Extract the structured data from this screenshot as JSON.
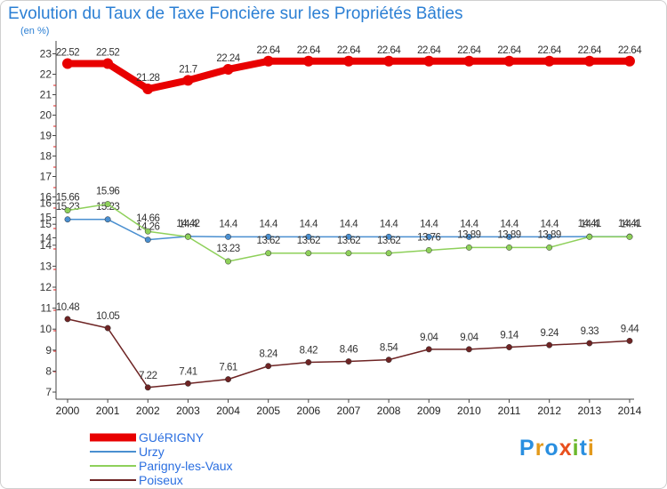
{
  "chart_data": {
    "type": "line",
    "title": "Evolution du Taux de Taxe Foncière sur les Propriétés Bâties",
    "unit_label": "(en %)",
    "categories": [
      "2000",
      "2001",
      "2002",
      "2003",
      "2004",
      "2005",
      "2006",
      "2007",
      "2008",
      "2009",
      "2010",
      "2011",
      "2012",
      "2013",
      "2014"
    ],
    "y_ticks_upper": [
      14,
      15,
      16,
      17,
      18,
      19,
      20,
      21,
      22,
      23
    ],
    "y_ticks_lower": [
      7,
      8,
      9,
      10,
      11,
      12,
      13,
      14,
      15,
      16
    ],
    "grid": false,
    "legend_position": "bottom-left",
    "series": [
      {
        "name": "GUéRIGNY",
        "color": "#e80000",
        "values": [
          22.52,
          22.52,
          21.28,
          21.7,
          22.24,
          22.64,
          22.64,
          22.64,
          22.64,
          22.64,
          22.64,
          22.64,
          22.64,
          22.64,
          22.64
        ],
        "labels": [
          "22.52",
          "22.52",
          "21.28",
          "21.7",
          "22.24",
          "22.64",
          "22.64",
          "22.64",
          "22.64",
          "22.64",
          "22.64",
          "22.64",
          "22.64",
          "22.64",
          "22.64"
        ]
      },
      {
        "name": "Urzy",
        "color": "#4a8fd0",
        "values": [
          15.23,
          15.23,
          14.26,
          14.42,
          14.4,
          14.4,
          14.4,
          14.4,
          14.4,
          14.4,
          14.4,
          14.4,
          14.4,
          14.41,
          14.41
        ],
        "labels": [
          "15.23",
          "15.23",
          "14.26",
          "14.42",
          "14.4",
          "14.4",
          "14.4",
          "14.4",
          "14.4",
          "14.4",
          "14.4",
          "14.4",
          "14.4",
          "14.41",
          "14.41"
        ]
      },
      {
        "name": "Parigny-les-Vaux",
        "color": "#8ed05a",
        "values": [
          15.66,
          15.96,
          14.66,
          14.4,
          13.23,
          13.62,
          13.62,
          13.62,
          13.62,
          13.76,
          13.89,
          13.89,
          13.89,
          14.4,
          14.4
        ],
        "labels": [
          "15.66",
          "15.96",
          "14.66",
          "14.4",
          "13.23",
          "13.62",
          "13.62",
          "13.62",
          "13.62",
          "13.76",
          "13.89",
          "13.89",
          "13.89",
          "14.4",
          "14.4"
        ]
      },
      {
        "name": "Poiseux",
        "color": "#6e2424",
        "values": [
          10.48,
          10.05,
          7.22,
          7.41,
          7.61,
          8.24,
          8.42,
          8.46,
          8.54,
          9.04,
          9.04,
          9.14,
          9.24,
          9.33,
          9.44
        ],
        "labels": [
          "10.48",
          "10.05",
          "7.22",
          "7.41",
          "7.61",
          "8.24",
          "8.42",
          "8.46",
          "8.54",
          "9.04",
          "9.04",
          "9.14",
          "9.24",
          "9.33",
          "9.44"
        ]
      }
    ]
  },
  "brand": {
    "logo_text": "Proxiti",
    "letter_colors": [
      "#2a8fe0",
      "#e39a1c",
      "#2a8fe0",
      "#e8501e",
      "#6bb82c",
      "#2a8fe0",
      "#e39a1c"
    ]
  }
}
